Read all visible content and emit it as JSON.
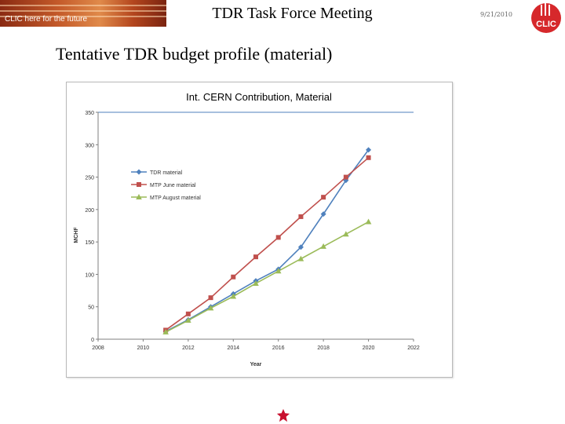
{
  "header": {
    "slogan": "CLIC here for the future",
    "title": "TDR Task Force Meeting",
    "date": "9/21/2010",
    "logo_text": "CLIC"
  },
  "slide": {
    "subtitle": "Tentative TDR budget profile (material)"
  },
  "colors": {
    "tdr": "#4f81bd",
    "june": "#c0504d",
    "august": "#9bbb59",
    "logo": "#d6282b"
  },
  "chart_data": {
    "type": "line",
    "title": "Int. CERN Contribution, Material",
    "xlabel": "Year",
    "ylabel": "MCHF",
    "xlim": [
      2008,
      2022
    ],
    "ylim": [
      0,
      350
    ],
    "xticks": [
      2008,
      2010,
      2012,
      2014,
      2016,
      2018,
      2020,
      2022
    ],
    "yticks": [
      0,
      50,
      100,
      150,
      200,
      250,
      300,
      350
    ],
    "grid": "major horizontal at 350 only",
    "legend": "upper-left inside plot",
    "series": [
      {
        "name": "TDR material",
        "marker": "diamond",
        "x": [
          2011,
          2012,
          2013,
          2014,
          2015,
          2016,
          2017,
          2018,
          2019,
          2020
        ],
        "y": [
          12,
          30,
          50,
          70,
          90,
          108,
          142,
          193,
          245,
          292
        ]
      },
      {
        "name": "MTP June material",
        "marker": "square",
        "x": [
          2011,
          2012,
          2013,
          2014,
          2015,
          2016,
          2017,
          2018,
          2019,
          2020
        ],
        "y": [
          14,
          39,
          64,
          96,
          127,
          157,
          189,
          219,
          250,
          280
        ]
      },
      {
        "name": "MTP August material",
        "marker": "triangle",
        "x": [
          2011,
          2012,
          2013,
          2014,
          2015,
          2016,
          2017,
          2018,
          2019,
          2020
        ],
        "y": [
          11,
          29,
          48,
          66,
          86,
          105,
          124,
          143,
          162,
          181
        ]
      }
    ]
  }
}
